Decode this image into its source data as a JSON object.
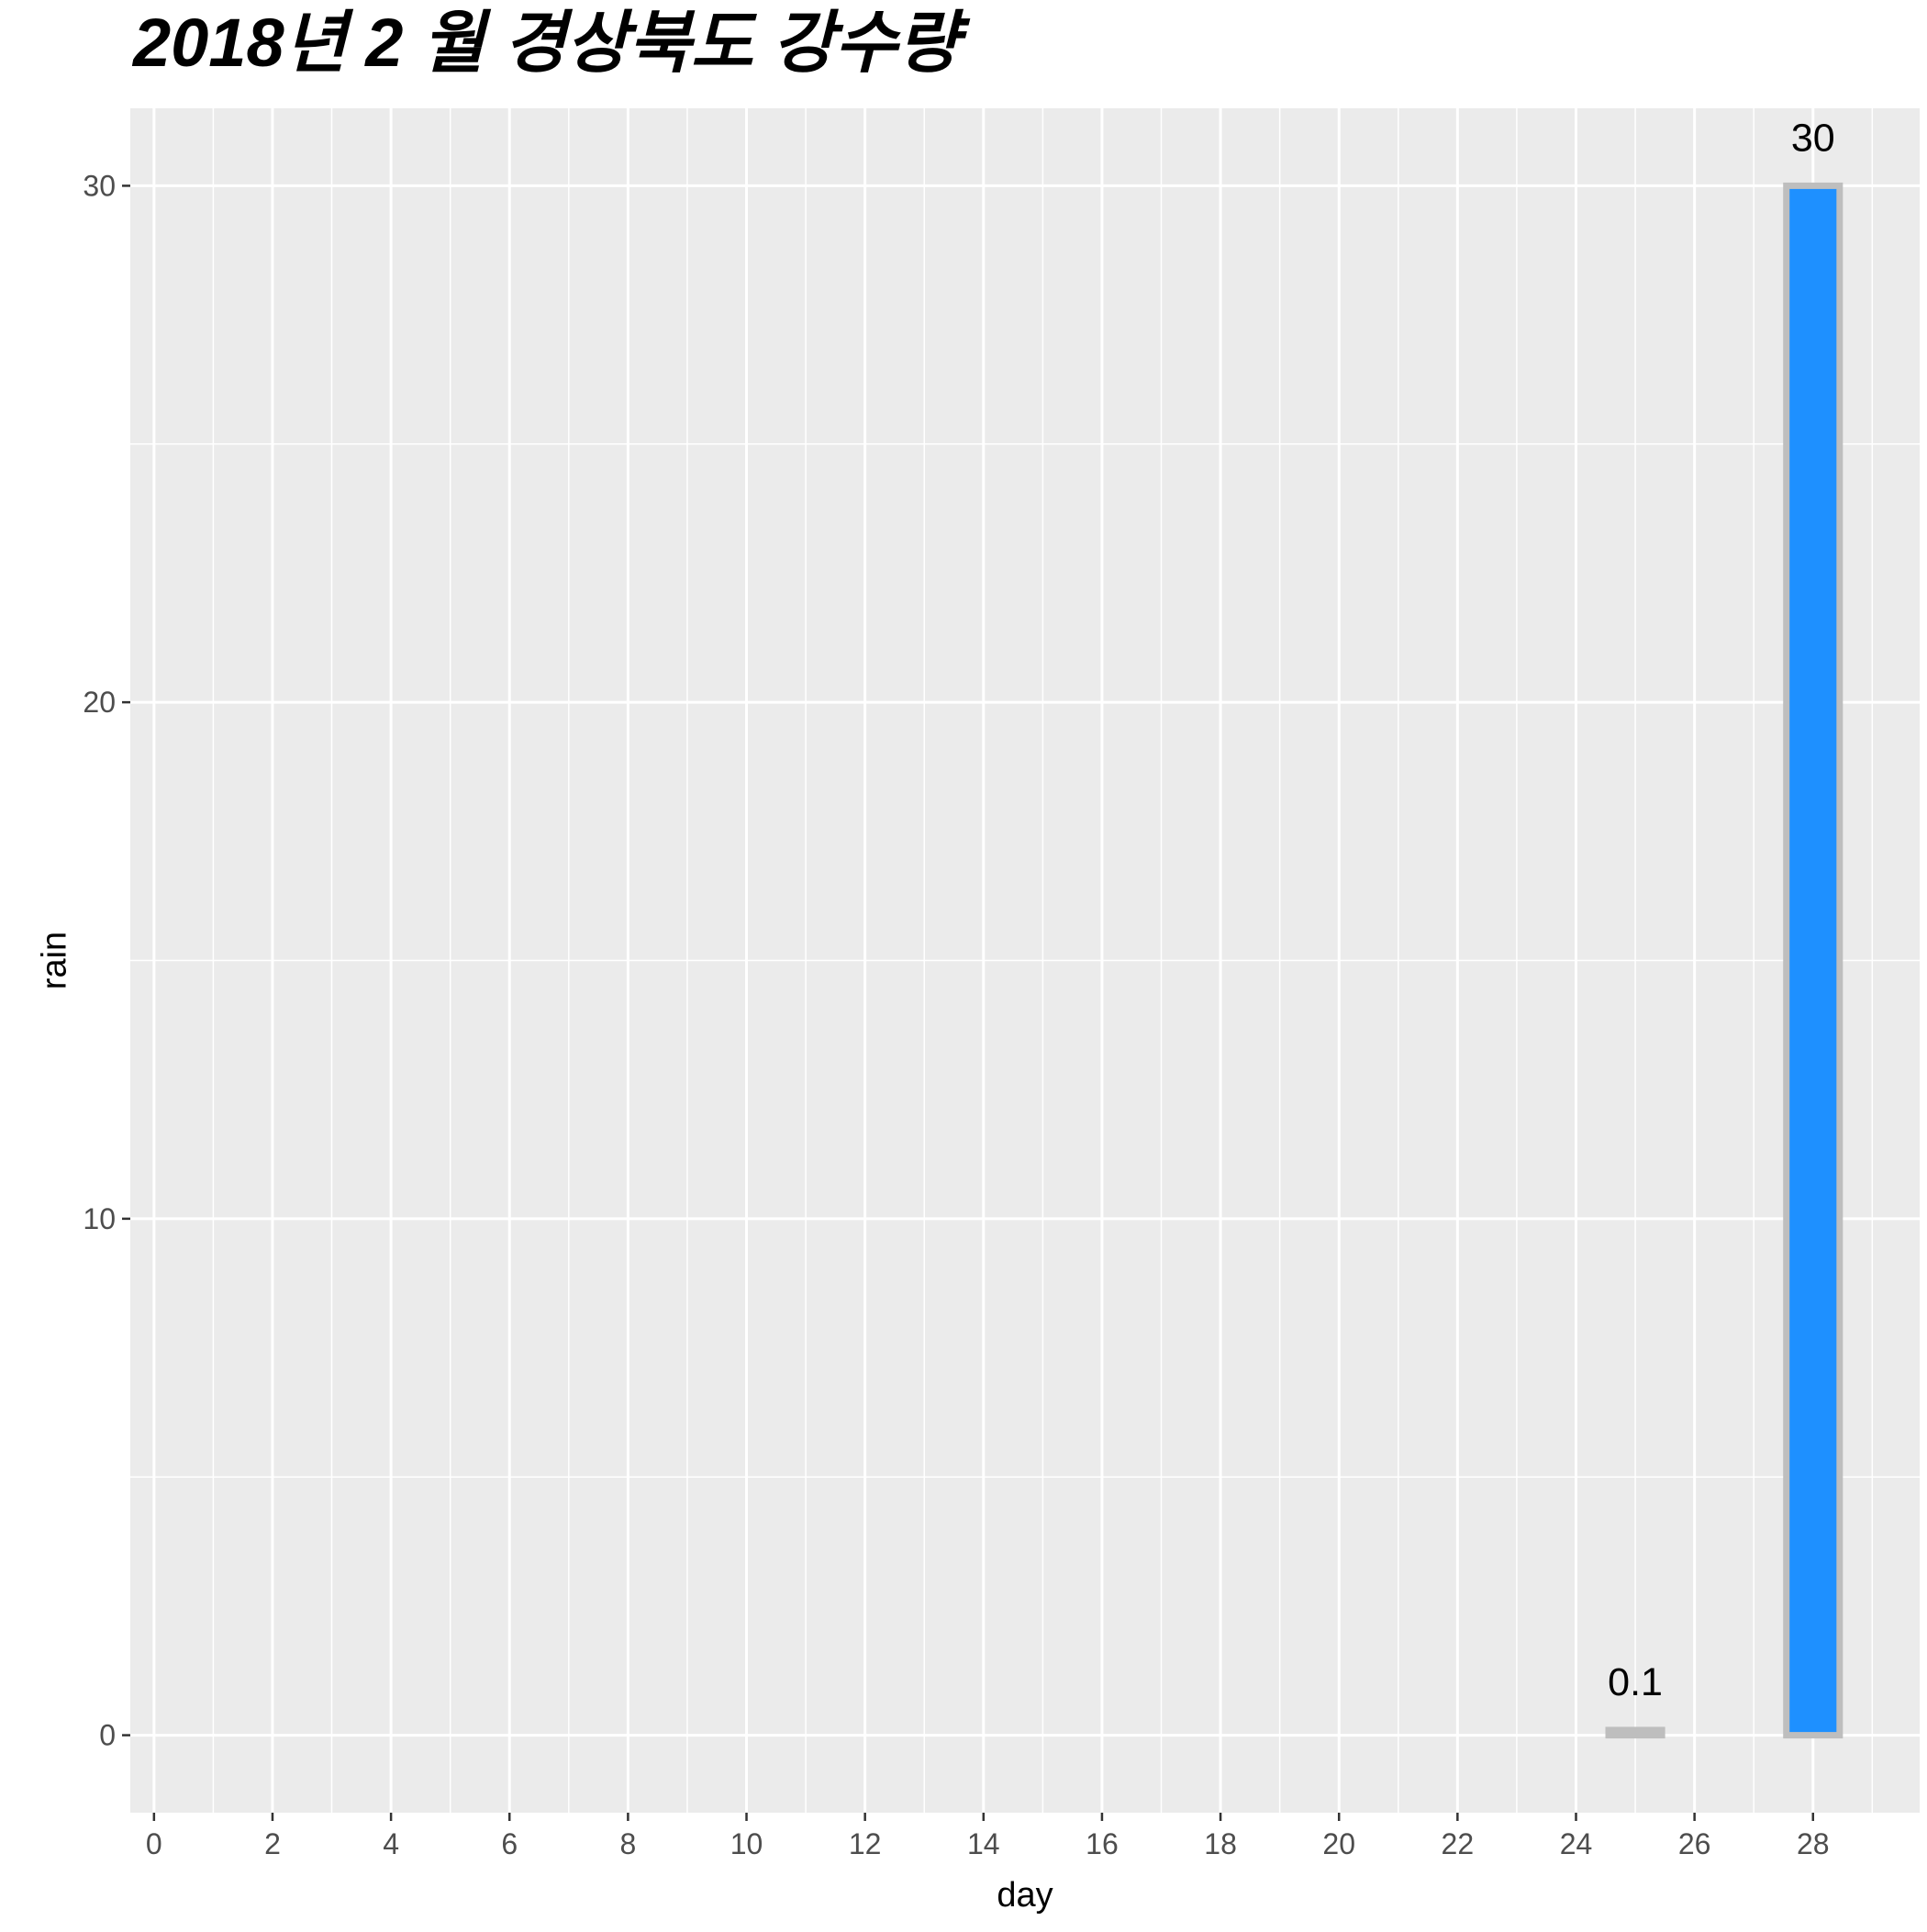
{
  "chart_data": {
    "type": "bar",
    "title": "2018년 2 월 경상북도 강수량",
    "xlabel": "day",
    "ylabel": "rain",
    "x": [
      25,
      28
    ],
    "values": [
      0.1,
      30
    ],
    "data_labels": [
      "0.1",
      "30"
    ],
    "xlim": [
      -0.4,
      29.8
    ],
    "ylim": [
      -1.5,
      31.5
    ],
    "x_ticks": [
      0,
      2,
      4,
      6,
      8,
      10,
      12,
      14,
      16,
      18,
      20,
      22,
      24,
      26,
      28
    ],
    "x_tick_labels": [
      "0",
      "2",
      "4",
      "6",
      "8",
      "10",
      "12",
      "14",
      "16",
      "18",
      "20",
      "22",
      "24",
      "26",
      "28"
    ],
    "y_ticks": [
      0,
      10,
      20,
      30
    ],
    "y_tick_labels": [
      "0",
      "10",
      "20",
      "30"
    ],
    "grid": true,
    "legend": "none",
    "colors": {
      "panel_background": "#ebebeb",
      "grid_line": "#ffffff",
      "bar_fill_max": "#1e90ff",
      "bar_fill_other": "#bebebe",
      "bar_outline": "#bebebe"
    }
  }
}
